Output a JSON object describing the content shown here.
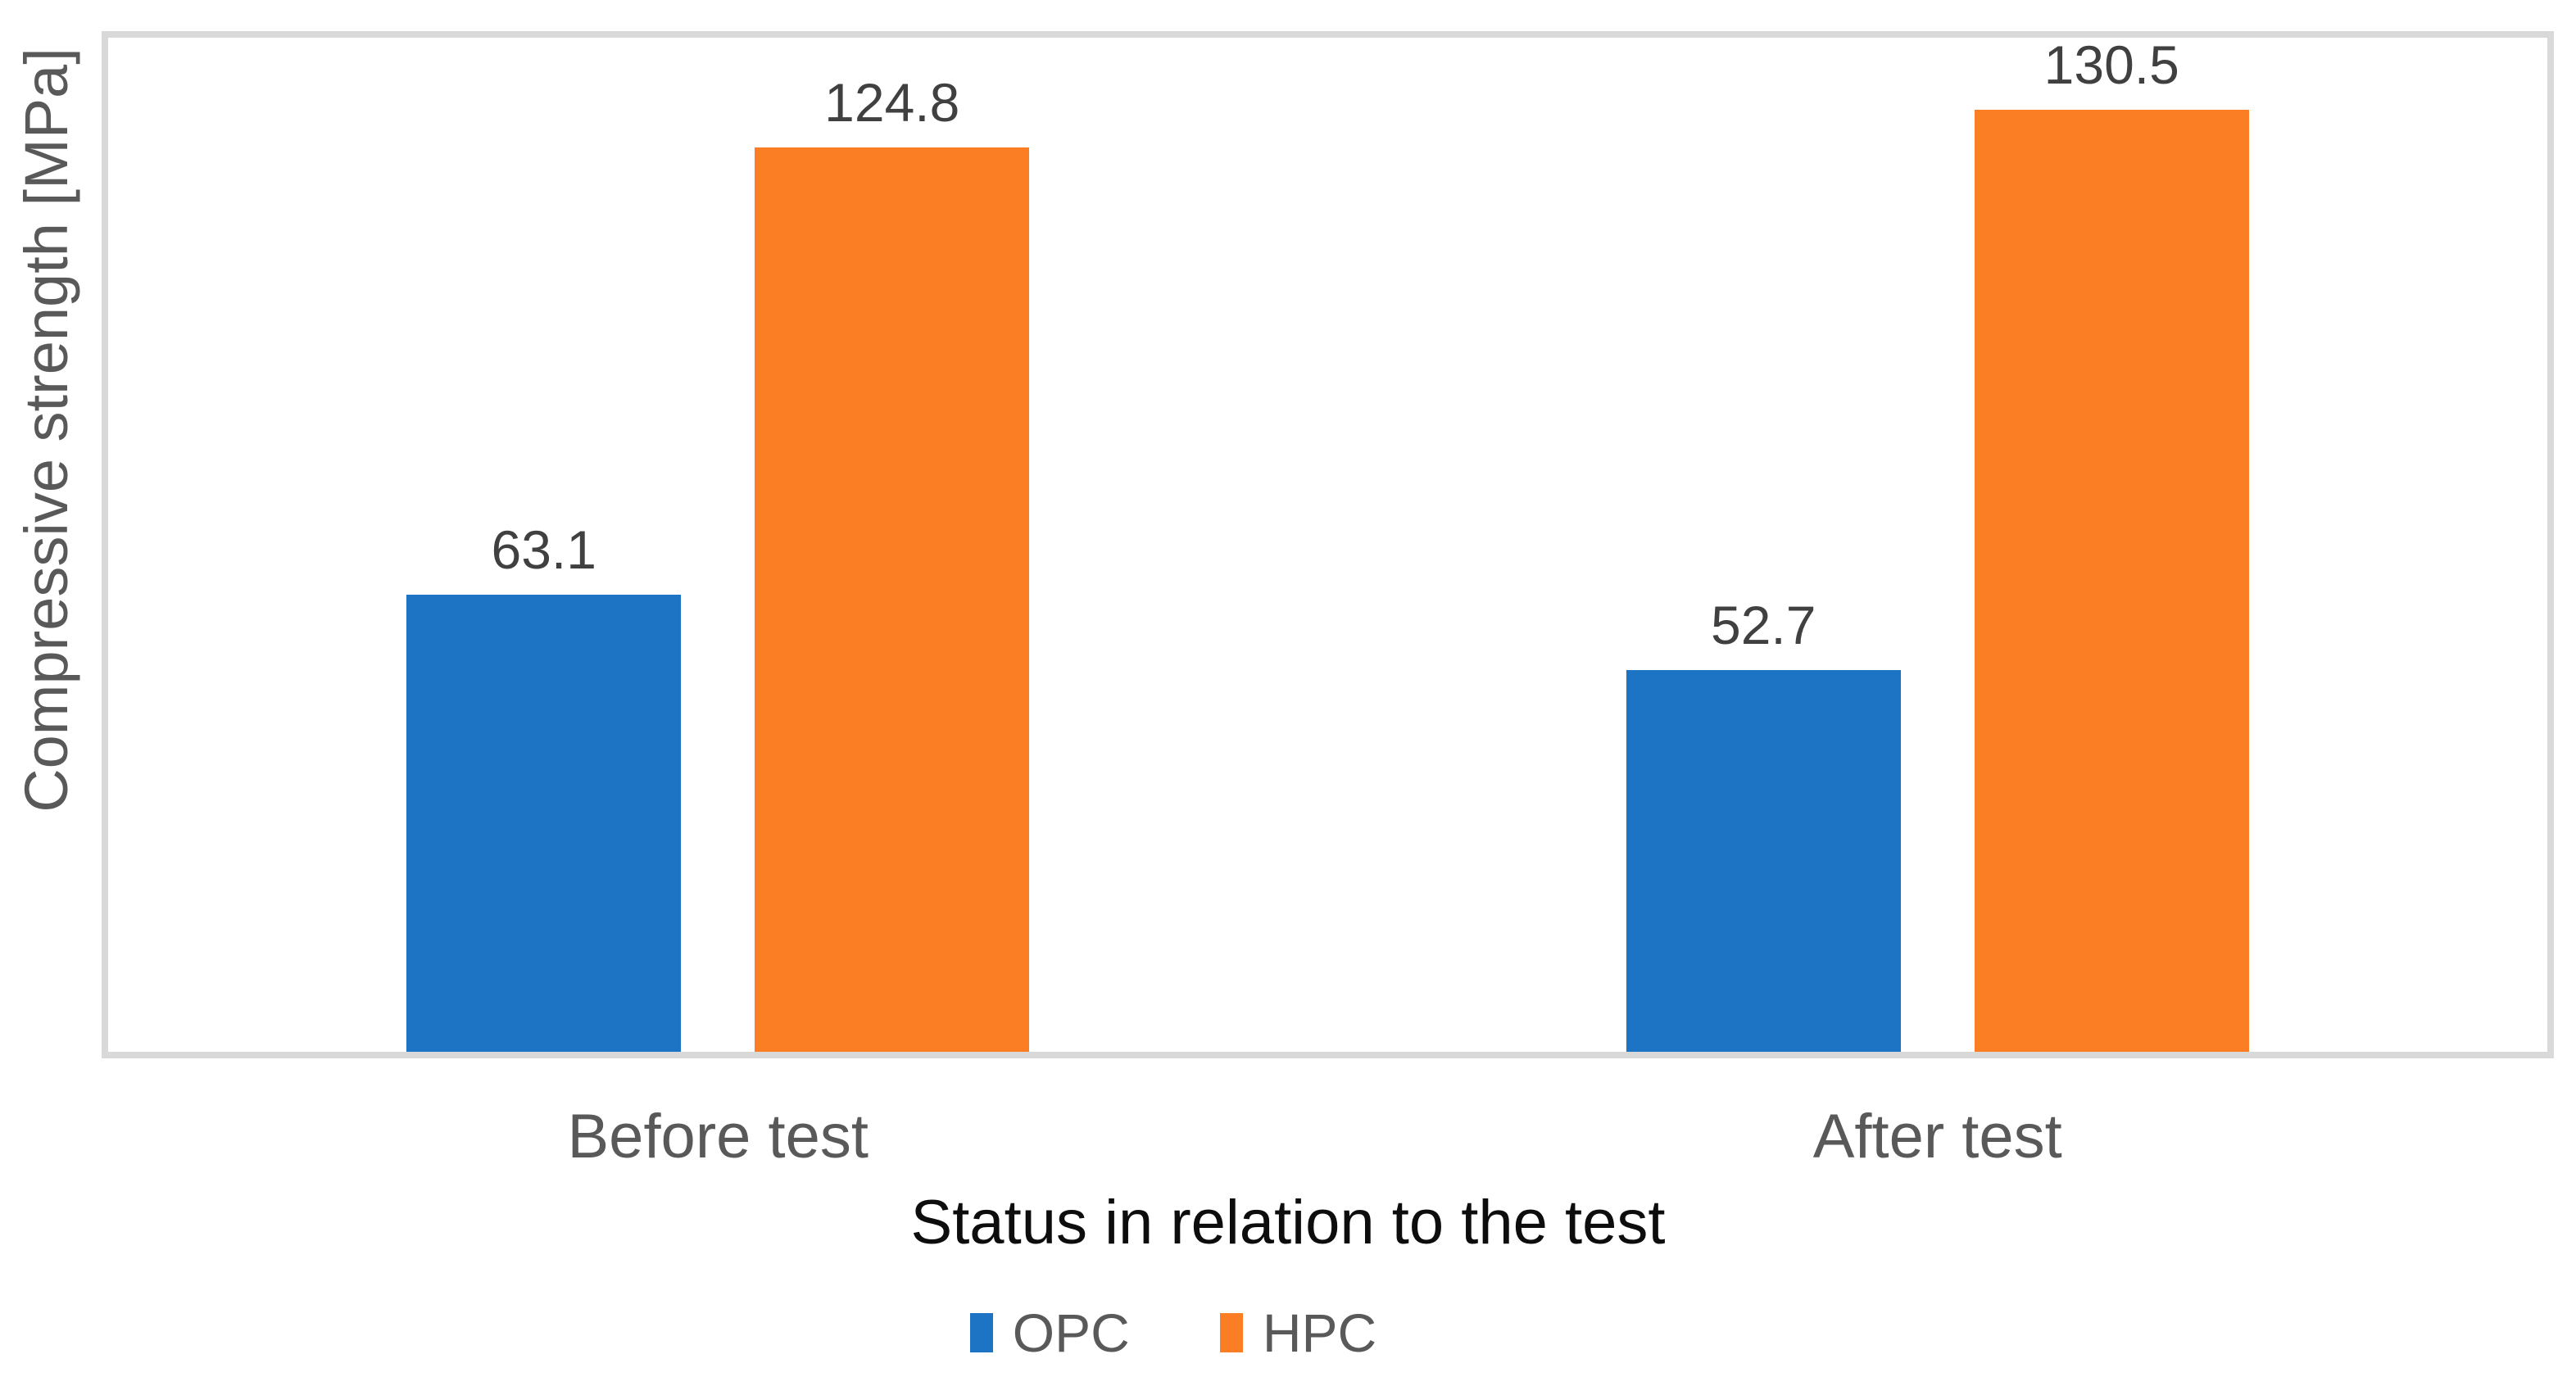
{
  "chart_data": {
    "type": "bar",
    "title": "",
    "categories": [
      "Before test",
      "After test"
    ],
    "series": [
      {
        "name": "OPC",
        "color": "#1D73C4",
        "values": [
          63.1,
          52.7
        ]
      },
      {
        "name": "HPC",
        "color": "#FC7E24",
        "values": [
          124.8,
          130.5
        ]
      }
    ],
    "xlabel": "Status in relation to the test",
    "ylabel": "Compressive strength [MPa]",
    "ylim": [
      0,
      140
    ],
    "grid": false,
    "y_ticks_visible": false,
    "legend_position": "bottom",
    "data_labels": true,
    "data_label_format": "one-decimal"
  },
  "styles": {
    "plot_border_color": "#D9D9D9",
    "data_label_color": "#404040",
    "axis_text_color": "#595959",
    "x_title_color": "#0D0D0D",
    "background": "#FFFFFF"
  }
}
